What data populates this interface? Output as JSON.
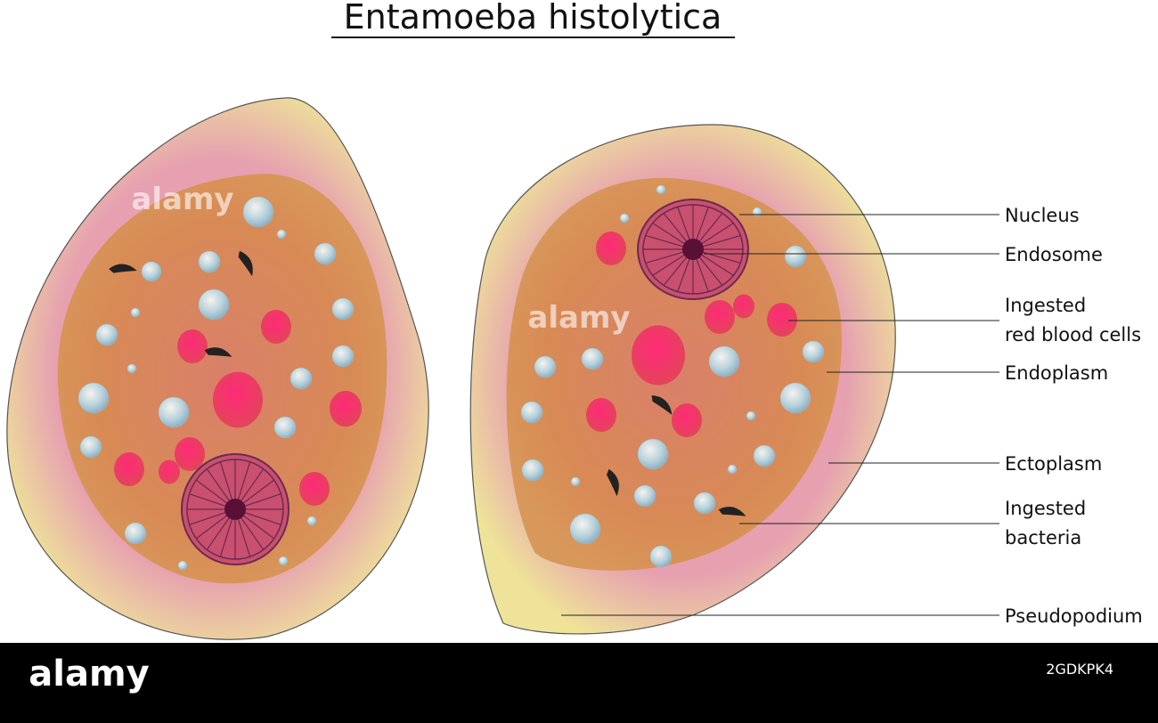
{
  "title": "Entamoeba histolytica",
  "labels": [
    {
      "lines": [
        "Nucleus"
      ]
    },
    {
      "lines": [
        "Endosome"
      ]
    },
    {
      "lines": [
        "Ingested",
        "red blood cells"
      ]
    },
    {
      "lines": [
        "Endoplasm"
      ]
    },
    {
      "lines": [
        "Ectoplasm"
      ]
    },
    {
      "lines": [
        "Ingested",
        "bacteria"
      ]
    },
    {
      "lines": [
        "Pseudopodium"
      ]
    }
  ],
  "footer": {
    "brand": "alamy",
    "id": "2GDKPK4"
  }
}
